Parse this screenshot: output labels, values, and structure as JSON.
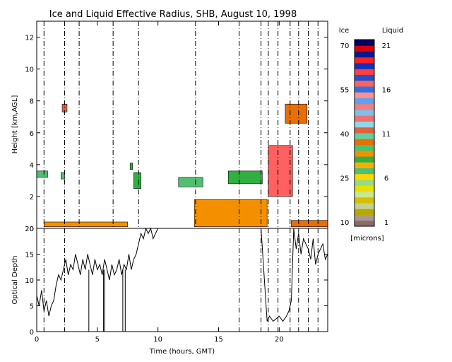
{
  "chart_data": [
    {
      "type": "heatmap",
      "title": "Ice and Liquid Effective Radius, SHB, August 10, 1998",
      "ylabel": "Height [km,AGL]",
      "xlim": [
        0,
        24
      ],
      "ylim": [
        0,
        13
      ],
      "y_ticks": [
        0,
        2,
        4,
        6,
        8,
        10,
        12
      ],
      "vertical_lines_x": [
        0.6,
        2.3,
        3.5,
        6.3,
        8.4,
        13.1,
        16.7,
        18.5,
        19.1,
        19.9,
        20.9,
        21.6,
        22.4,
        23.2
      ],
      "clouds": [
        {
          "phase": "liquid",
          "x": [
            0.0,
            0.9
          ],
          "y": [
            3.2,
            3.6
          ],
          "radius_microns": 7
        },
        {
          "phase": "liquid",
          "x": [
            2.0,
            2.3
          ],
          "y": [
            3.1,
            3.5
          ],
          "radius_microns": 7
        },
        {
          "phase": "liquid",
          "x": [
            0.6,
            7.5
          ],
          "y": [
            0.1,
            0.4
          ],
          "radius_microns": 9
        },
        {
          "phase": "liquid",
          "x": [
            8.0,
            8.6
          ],
          "y": [
            2.5,
            3.5
          ],
          "radius_microns": 8
        },
        {
          "phase": "liquid",
          "x": [
            7.7,
            7.9
          ],
          "y": [
            3.7,
            4.1
          ],
          "radius_microns": 8
        },
        {
          "phase": "liquid",
          "x": [
            11.7,
            13.7
          ],
          "y": [
            2.6,
            3.2
          ],
          "radius_microns": 7
        },
        {
          "phase": "liquid",
          "x": [
            13.0,
            19.0
          ],
          "y": [
            0.1,
            1.8
          ],
          "radius_microns": 9
        },
        {
          "phase": "liquid",
          "x": [
            15.8,
            18.6
          ],
          "y": [
            2.8,
            3.6
          ],
          "radius_microns": 8
        },
        {
          "phase": "liquid",
          "x": [
            21.0,
            24.0
          ],
          "y": [
            0.1,
            0.5
          ],
          "radius_microns": 10
        },
        {
          "phase": "ice",
          "x": [
            19.1,
            21.1
          ],
          "y": [
            2.0,
            5.2
          ],
          "radius_microns": 55
        },
        {
          "phase": "ice",
          "x": [
            2.1,
            2.5
          ],
          "y": [
            7.3,
            7.8
          ],
          "radius_microns": 40
        },
        {
          "phase": "ice",
          "x": [
            20.5,
            22.3
          ],
          "y": [
            6.6,
            7.8
          ],
          "radius_microns": 38
        }
      ]
    },
    {
      "type": "line",
      "xlabel": "Time (hours, GMT)",
      "ylabel": "Optical Depth",
      "xlim": [
        0,
        24
      ],
      "ylim": [
        0,
        20
      ],
      "x_ticks": [
        0,
        5,
        10,
        15,
        20
      ],
      "y_ticks": [
        0,
        5,
        10,
        15,
        20
      ],
      "x": [
        0.0,
        0.2,
        0.4,
        0.6,
        0.8,
        1.0,
        1.2,
        1.4,
        1.6,
        1.8,
        2.0,
        2.2,
        2.4,
        2.6,
        2.8,
        3.0,
        3.2,
        3.4,
        3.6,
        3.8,
        4.0,
        4.2,
        4.4,
        4.6,
        4.8,
        5.0,
        5.2,
        5.4,
        5.6,
        5.8,
        6.0,
        6.2,
        6.4,
        6.6,
        6.8,
        7.0,
        7.2,
        7.4,
        7.6,
        7.8,
        8.0,
        8.2,
        8.4,
        8.6,
        8.8,
        9.0,
        9.2,
        9.4,
        9.6,
        9.8,
        10.0,
        18.5,
        19.0,
        19.2,
        19.5,
        20.0,
        20.3,
        20.6,
        20.8,
        21.0,
        21.2,
        21.4,
        21.6,
        21.8,
        22.0,
        22.2,
        22.4,
        22.6,
        22.8,
        23.0,
        23.2,
        23.4,
        23.6,
        23.8,
        24.0
      ],
      "y": [
        7,
        5,
        8,
        4,
        6,
        3,
        5,
        6,
        9,
        11,
        10,
        12,
        14,
        11,
        13,
        12,
        15,
        13,
        11,
        14,
        12,
        15,
        13,
        11,
        14,
        12,
        13,
        11,
        14,
        12,
        10,
        13,
        11,
        12,
        14,
        11,
        13,
        12,
        15,
        12,
        14,
        15,
        17,
        19,
        18,
        20,
        19,
        20,
        18,
        19,
        20,
        20,
        2,
        3,
        2,
        3,
        2,
        3,
        4,
        6,
        20,
        16,
        19,
        15,
        18,
        17,
        16,
        14,
        18,
        13,
        15,
        16,
        17,
        14,
        15
      ],
      "spikes_to_zero_x": [
        4.3,
        5.5,
        5.6,
        7.1,
        7.3
      ],
      "vertical_lines_x": [
        0.6,
        2.3,
        16.7,
        18.5,
        19.1,
        19.9,
        20.9,
        21.6,
        22.4,
        23.2
      ]
    }
  ],
  "colorbar": {
    "ice_label": "Ice",
    "liquid_label": "Liquid",
    "ice_ticks": [
      "70",
      "55",
      "40",
      "25",
      "10"
    ],
    "liquid_ticks": [
      "21",
      "16",
      "11",
      "6",
      "1"
    ],
    "units": "[microns]",
    "colors": [
      "#8b6a6a",
      "#a89890",
      "#b5a800",
      "#c4d090",
      "#d4c000",
      "#c8e890",
      "#e8e000",
      "#98dc80",
      "#ffd800",
      "#50c070",
      "#f8b000",
      "#30b040",
      "#f49000",
      "#40c870",
      "#e87000",
      "#60d0a0",
      "#e06040",
      "#90d8e8",
      "#f07070",
      "#80c0e8",
      "#f08080",
      "#60a0f0",
      "#ff9090",
      "#3070e0",
      "#ff6060",
      "#2050d0",
      "#ff4040",
      "#1030c0",
      "#ff2020",
      "#081890",
      "#d80000",
      "#000060"
    ]
  }
}
